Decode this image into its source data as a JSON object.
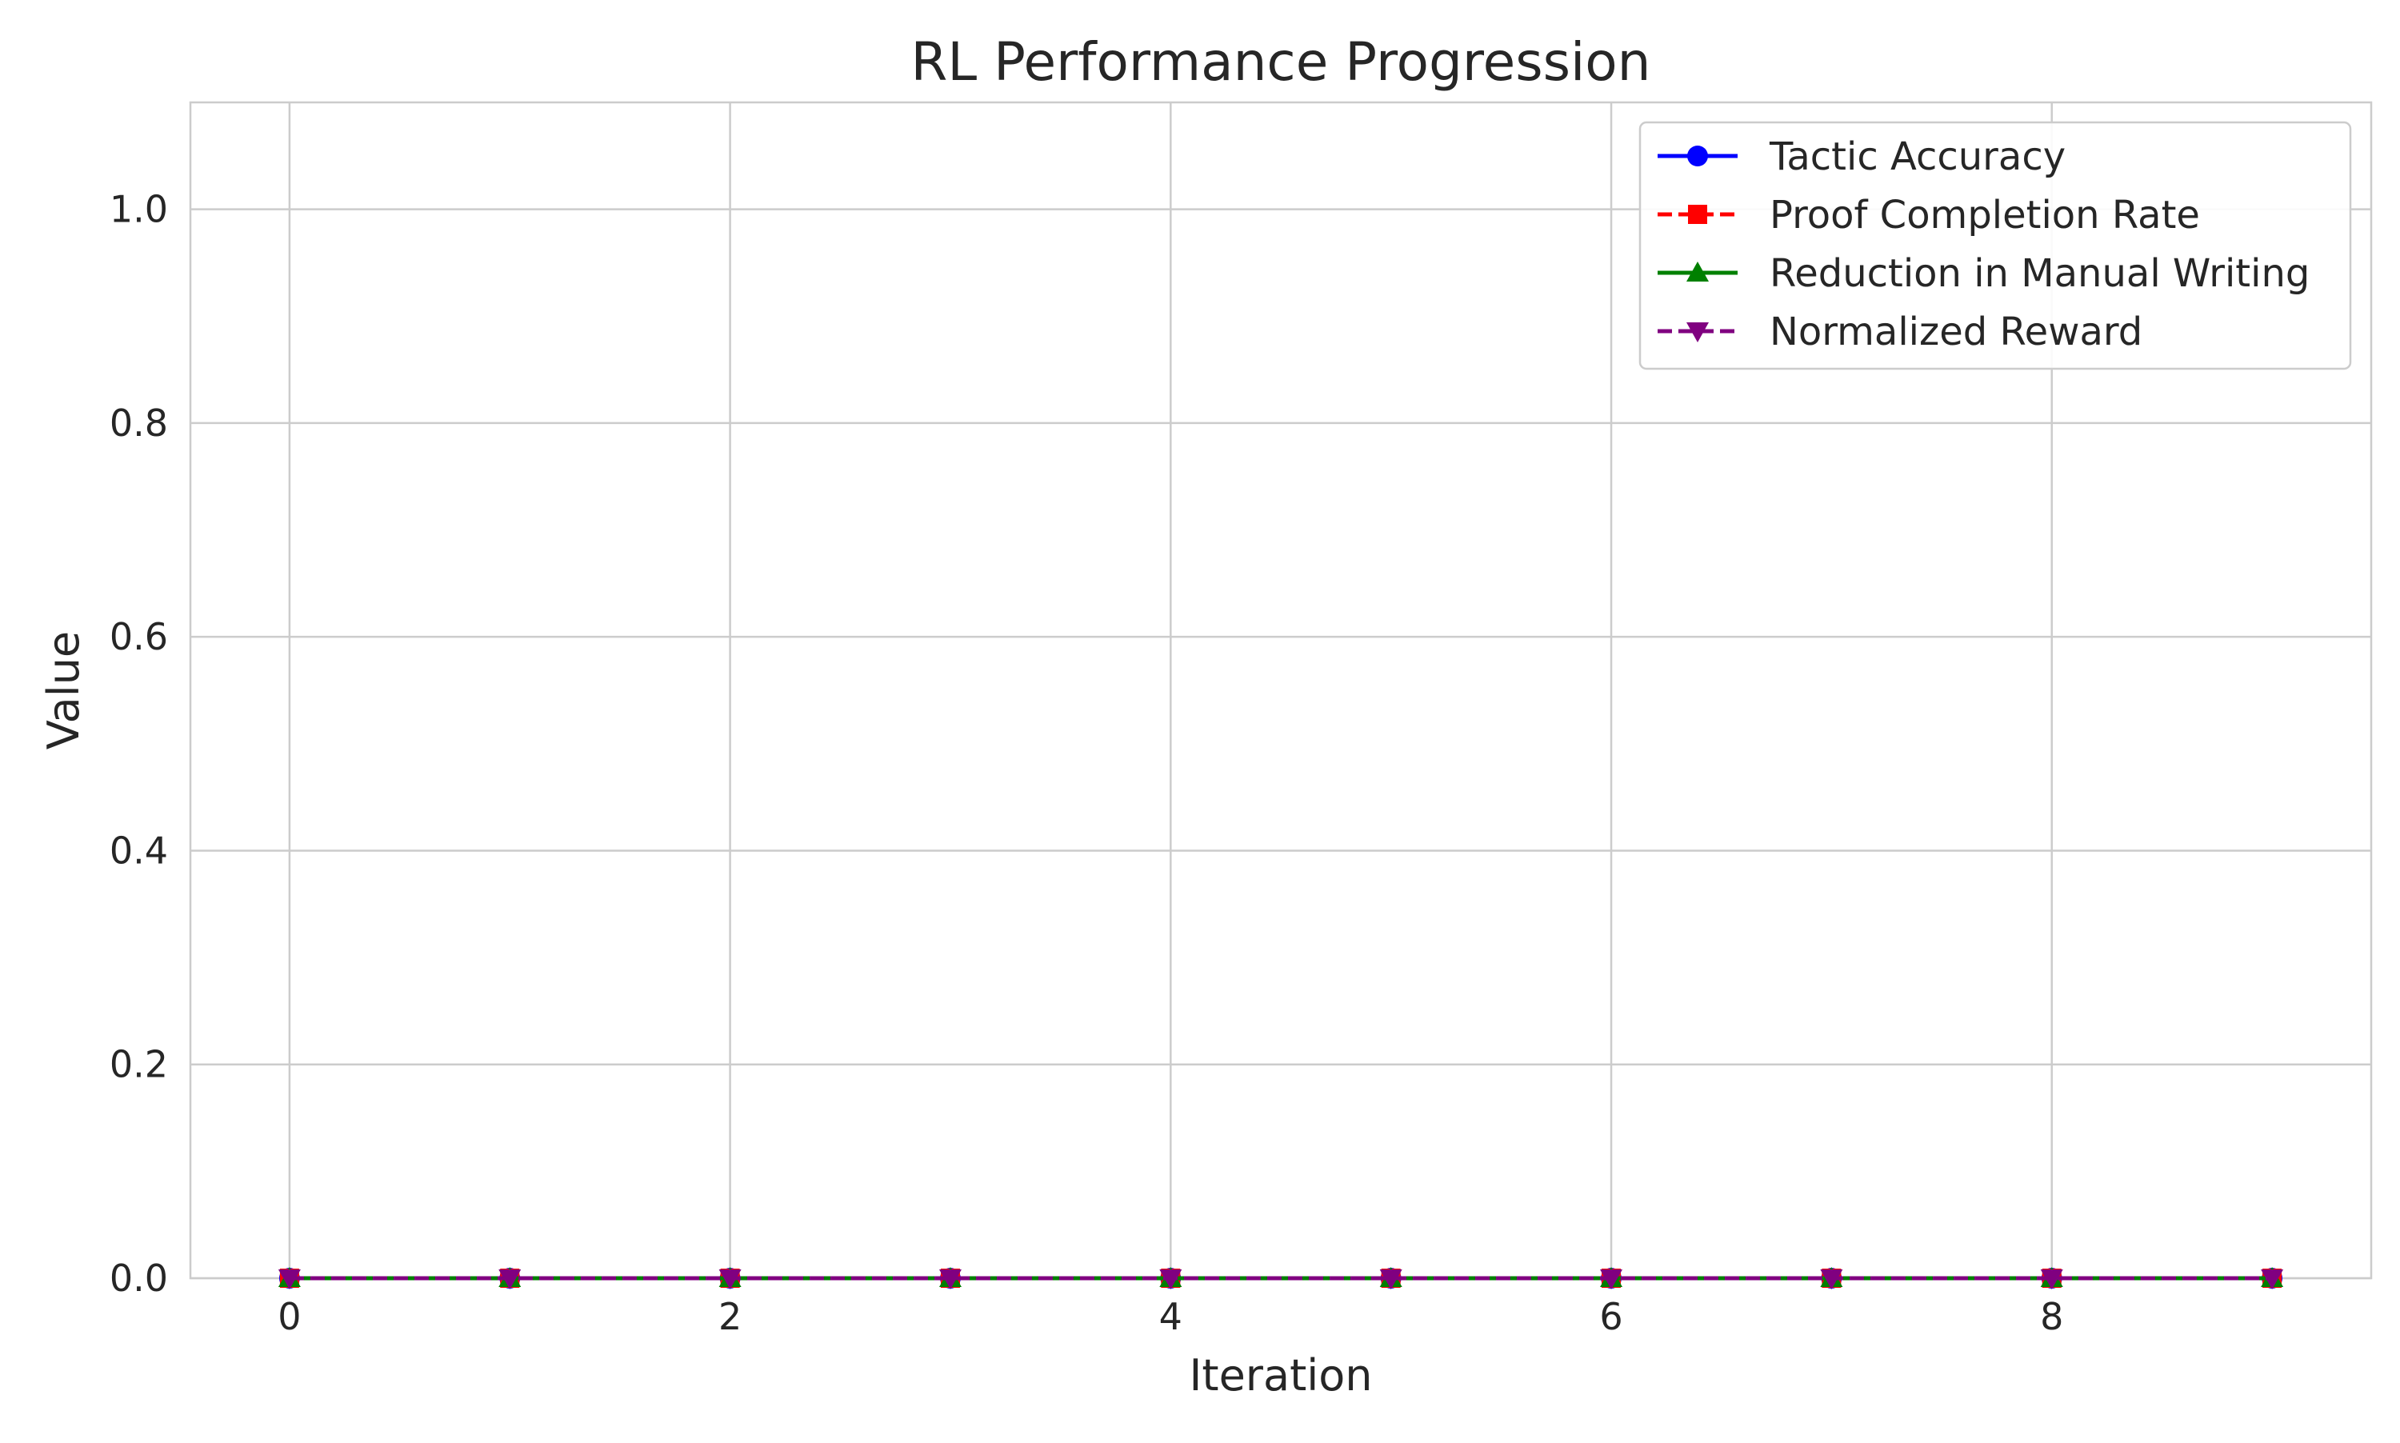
{
  "chart_data": {
    "type": "line",
    "title": "RL Performance Progression",
    "xlabel": "Iteration",
    "ylabel": "Value",
    "x": [
      0,
      1,
      2,
      3,
      4,
      5,
      6,
      7,
      8,
      9
    ],
    "xlim": [
      -0.45,
      9.45
    ],
    "ylim": [
      0,
      1.1
    ],
    "xticks": [
      0,
      2,
      4,
      6,
      8
    ],
    "xtick_labels": [
      "0",
      "2",
      "4",
      "6",
      "8"
    ],
    "yticks": [
      0.0,
      0.2,
      0.4,
      0.6,
      0.8,
      1.0
    ],
    "ytick_labels": [
      "0.0",
      "0.2",
      "0.4",
      "0.6",
      "0.8",
      "1.0"
    ],
    "grid": true,
    "legend_position": "top-right",
    "series": [
      {
        "name": "Tactic Accuracy",
        "values": [
          0,
          0,
          0,
          0,
          0,
          0,
          0,
          0,
          0,
          0
        ],
        "color": "#0000ff",
        "line_style": "solid",
        "marker": "circle"
      },
      {
        "name": "Proof Completion Rate",
        "values": [
          0,
          0,
          0,
          0,
          0,
          0,
          0,
          0,
          0,
          0
        ],
        "color": "#ff0000",
        "line_style": "dashed",
        "marker": "square"
      },
      {
        "name": "Reduction in Manual Writing",
        "values": [
          0,
          0,
          0,
          0,
          0,
          0,
          0,
          0,
          0,
          0
        ],
        "color": "#008000",
        "line_style": "solid",
        "marker": "triangle-up"
      },
      {
        "name": "Normalized Reward",
        "values": [
          0,
          0,
          0,
          0,
          0,
          0,
          0,
          0,
          0,
          0
        ],
        "color": "#800080",
        "line_style": "dashed",
        "marker": "triangle-down"
      }
    ]
  }
}
